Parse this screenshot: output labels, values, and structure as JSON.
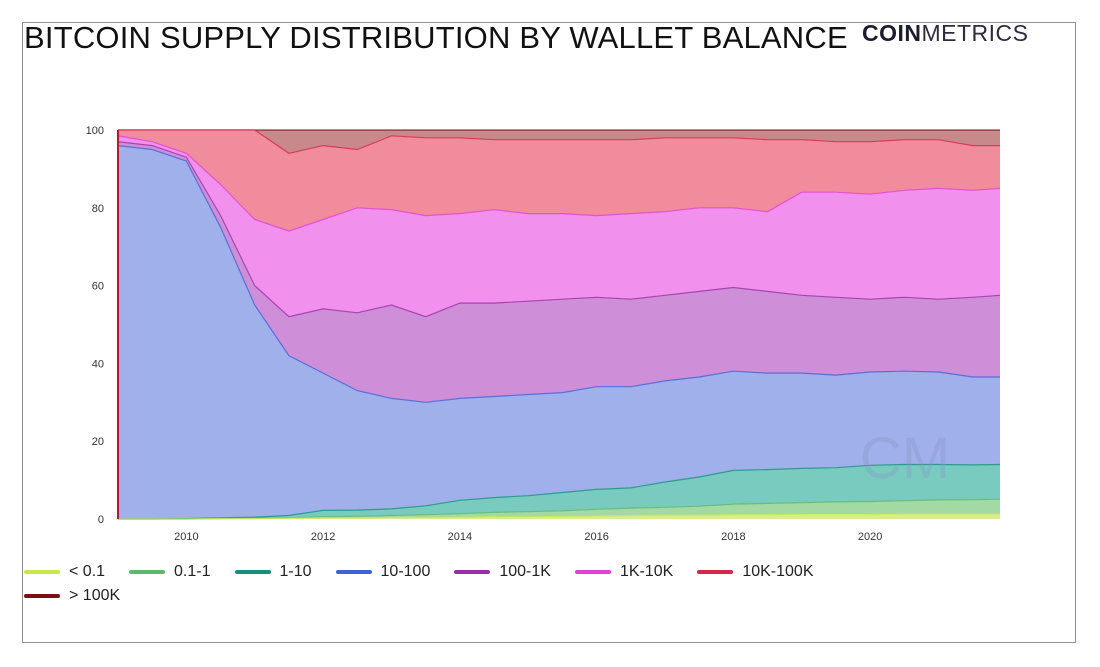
{
  "header": {
    "title": "BITCOIN SUPPLY DISTRIBUTION BY WALLET BALANCE",
    "brand_bold": "COIN",
    "brand_light": "METRICS"
  },
  "watermark": "CM",
  "chart_data": {
    "type": "area",
    "stacked": true,
    "title": "BITCOIN SUPPLY DISTRIBUTION BY WALLET BALANCE",
    "xlabel": "",
    "ylabel": "",
    "ylim": [
      0,
      100
    ],
    "xlim": [
      2009.0,
      2021.9
    ],
    "yticks": [
      0,
      20,
      40,
      60,
      80,
      100
    ],
    "xticks": [
      2010,
      2012,
      2014,
      2016,
      2018,
      2020
    ],
    "grid": false,
    "legend_position": "bottom",
    "value_semantics": "cumulative top of each stacked band, % of supply",
    "x": [
      2009.0,
      2009.5,
      2010.0,
      2010.5,
      2011.0,
      2011.5,
      2012.0,
      2012.5,
      2013.0,
      2013.5,
      2014.0,
      2014.5,
      2015.0,
      2015.5,
      2016.0,
      2016.5,
      2017.0,
      2017.5,
      2018.0,
      2018.5,
      2019.0,
      2019.5,
      2020.0,
      2020.5,
      2021.0,
      2021.5,
      2021.9
    ],
    "series": [
      {
        "name": "< 0.1",
        "line": "#c6e84a",
        "fill": "#d9ec8e",
        "values": [
          0,
          0,
          0,
          0.1,
          0.1,
          0.2,
          0.3,
          0.3,
          0.4,
          0.4,
          0.5,
          0.6,
          0.6,
          0.7,
          0.8,
          0.9,
          1.0,
          1.0,
          1.1,
          1.1,
          1.2,
          1.2,
          1.2,
          1.3,
          1.3,
          1.3,
          1.3
        ]
      },
      {
        "name": "0.1-1",
        "line": "#5cb86a",
        "fill": "#a3d9a2",
        "values": [
          0,
          0,
          0,
          0.1,
          0.2,
          0.3,
          0.6,
          0.7,
          0.9,
          1.1,
          1.4,
          1.7,
          1.9,
          2.1,
          2.5,
          2.8,
          3.0,
          3.3,
          3.8,
          4.0,
          4.2,
          4.4,
          4.5,
          4.7,
          4.9,
          5.0,
          5.1
        ]
      },
      {
        "name": "1-10",
        "line": "#14917c",
        "fill": "#79cbc0",
        "values": [
          0,
          0,
          0.1,
          0.3,
          0.5,
          0.9,
          2.2,
          2.3,
          2.6,
          3.4,
          4.8,
          5.5,
          6.0,
          6.8,
          7.6,
          8.0,
          9.5,
          10.8,
          12.5,
          12.7,
          13.0,
          13.2,
          13.8,
          14.0,
          14.0,
          13.9,
          14.0
        ]
      },
      {
        "name": "10-100",
        "line": "#3f62d6",
        "fill": "#9fb0ea",
        "values": [
          96,
          95,
          92,
          75,
          55,
          42,
          37.5,
          33,
          31,
          30,
          31,
          31.5,
          32,
          32.5,
          34,
          34,
          35.5,
          36.5,
          38,
          37.5,
          37.5,
          37,
          37.8,
          38,
          37.8,
          36.5,
          36.5
        ]
      },
      {
        "name": "100-1K",
        "line": "#9a2ea8",
        "fill": "#cf8fd8",
        "values": [
          97,
          96,
          93,
          78,
          60,
          52,
          54,
          53,
          55,
          52,
          55.5,
          55.5,
          56,
          56.5,
          57,
          56.5,
          57.5,
          58.5,
          59.5,
          58.5,
          57.5,
          57,
          56.5,
          57,
          56.5,
          57,
          57.5
        ]
      },
      {
        "name": "1K-10K",
        "line": "#e040d6",
        "fill": "#f290ed",
        "values": [
          98.5,
          97,
          94,
          86,
          77,
          74,
          77,
          80,
          79.5,
          78,
          78.5,
          79.5,
          78.5,
          78.5,
          78,
          78.5,
          79,
          80,
          80,
          79,
          84,
          84,
          83.5,
          84.5,
          85,
          84.5,
          85
        ]
      },
      {
        "name": "10K-100K",
        "line": "#d8264b",
        "fill": "#f08c9b",
        "values": [
          100,
          100,
          100,
          100,
          100,
          94,
          96,
          95,
          98.5,
          98,
          98,
          97.5,
          97.5,
          97.5,
          97.5,
          97.5,
          98,
          98,
          98,
          97.5,
          97.5,
          97,
          97,
          97.5,
          97.5,
          96,
          96
        ]
      },
      {
        "name": "> 100K",
        "line": "#7a0f13",
        "fill": "#c7898a",
        "values": [
          100,
          100,
          100,
          100,
          100,
          100,
          100,
          100,
          100,
          100,
          100,
          100,
          100,
          100,
          100,
          100,
          100,
          100,
          100,
          100,
          100,
          100,
          100,
          100,
          100,
          100,
          100
        ]
      }
    ]
  },
  "legend": [
    {
      "label": "< 0.1",
      "color": "#c6e84a"
    },
    {
      "label": "0.1-1",
      "color": "#5cb86a"
    },
    {
      "label": "1-10",
      "color": "#14917c"
    },
    {
      "label": "10-100",
      "color": "#3f62d6"
    },
    {
      "label": "100-1K",
      "color": "#9a2ea8"
    },
    {
      "label": "1K-10K",
      "color": "#e040d6"
    },
    {
      "label": "10K-100K",
      "color": "#d8264b"
    },
    {
      "label": "> 100K",
      "color": "#7a0f13"
    }
  ]
}
